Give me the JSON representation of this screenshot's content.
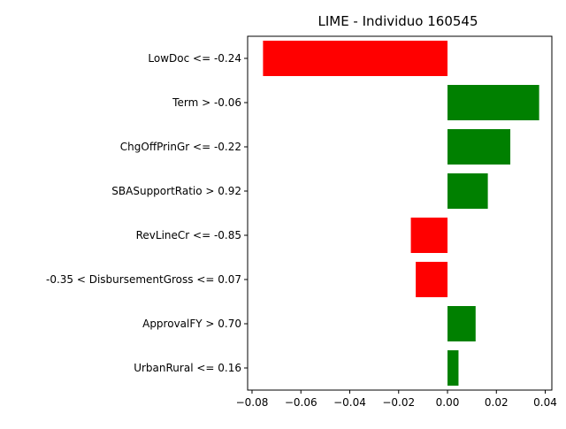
{
  "chart_data": {
    "type": "bar",
    "orientation": "horizontal",
    "title": "LIME - Individuo 160545",
    "xlabel": "",
    "ylabel": "",
    "xlim": [
      -0.0818,
      0.0427
    ],
    "xticks": [
      -0.08,
      -0.06,
      -0.04,
      -0.02,
      0.0,
      0.02,
      0.04
    ],
    "xtick_labels": [
      "−0.08",
      "−0.06",
      "−0.04",
      "−0.02",
      "0.00",
      "0.02",
      "0.04"
    ],
    "grid": false,
    "legend": "none",
    "colors": {
      "positive": "#008000",
      "negative": "#ff0000"
    },
    "categories": [
      "LowDoc <= -0.24",
      "Term > -0.06",
      "ChgOffPrinGr <= -0.22",
      "SBASupportRatio > 0.92",
      "RevLineCr <= -0.85",
      "-0.35 < DisbursementGross <= 0.07",
      "ApprovalFY > 0.70",
      "UrbanRural <= 0.16"
    ],
    "values": [
      -0.0755,
      0.0375,
      0.0257,
      0.0165,
      -0.015,
      -0.013,
      0.0115,
      0.0045
    ]
  }
}
